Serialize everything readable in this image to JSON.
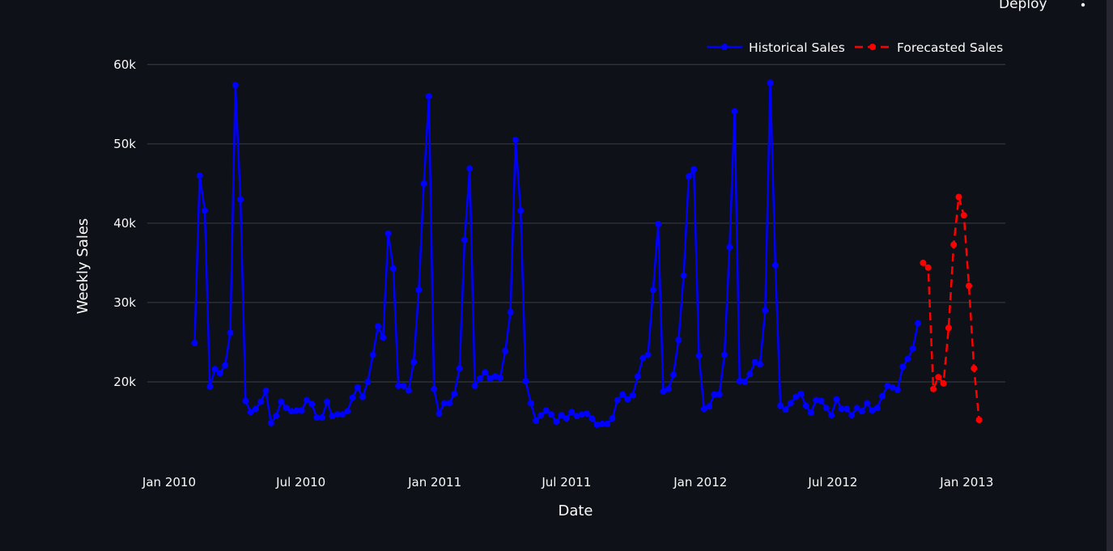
{
  "header": {
    "deploy_label": "Deploy"
  },
  "colors": {
    "background": "#0e1117",
    "grid": "#3b3f47",
    "historical": "#0000ff",
    "forecast": "#ff0000",
    "text": "#fafafa"
  },
  "chart_data": {
    "type": "line",
    "xlabel": "Date",
    "ylabel": "Weekly Sales",
    "x_ticks": [
      "Jan 2010",
      "Jul 2010",
      "Jan 2011",
      "Jul 2011",
      "Jan 2012",
      "Jul 2012",
      "Jan 2013"
    ],
    "x_tick_dates": [
      "2010-01-01",
      "2010-07-01",
      "2011-01-01",
      "2011-07-01",
      "2012-01-01",
      "2012-07-01",
      "2013-01-01"
    ],
    "y_ticks": [
      20000,
      30000,
      40000,
      50000,
      60000
    ],
    "y_tick_labels": [
      "20k",
      "30k",
      "40k",
      "50k",
      "60k"
    ],
    "ylim": [
      10000,
      61000
    ],
    "xlim": [
      "2009-12-02",
      "2013-02-23"
    ],
    "grid": true,
    "legend_position": "top-right",
    "series": [
      {
        "name": "Historical Sales",
        "style": "solid",
        "color": "#0000ff",
        "x": [
          "2010-02-05",
          "2010-02-12",
          "2010-02-19",
          "2010-02-26",
          "2010-03-05",
          "2010-03-12",
          "2010-03-19",
          "2010-03-26",
          "2010-04-02",
          "2010-04-09",
          "2010-04-16",
          "2010-04-23",
          "2010-04-30",
          "2010-05-07",
          "2010-05-14",
          "2010-05-21",
          "2010-05-28",
          "2010-06-04",
          "2010-06-11",
          "2010-06-18",
          "2010-06-25",
          "2010-07-02",
          "2010-07-09",
          "2010-07-16",
          "2010-07-23",
          "2010-07-30",
          "2010-08-06",
          "2010-08-13",
          "2010-08-20",
          "2010-08-27",
          "2010-09-03",
          "2010-09-10",
          "2010-09-17",
          "2010-09-24",
          "2010-10-01",
          "2010-10-08",
          "2010-10-15",
          "2010-10-22",
          "2010-10-29",
          "2010-11-05",
          "2010-11-12",
          "2010-11-19",
          "2010-11-26",
          "2010-12-03",
          "2010-12-10",
          "2010-12-17",
          "2010-12-24",
          "2010-12-31",
          "2011-01-07",
          "2011-01-14",
          "2011-01-21",
          "2011-01-28",
          "2011-02-04",
          "2011-02-11",
          "2011-02-18",
          "2011-02-25",
          "2011-03-04",
          "2011-03-11",
          "2011-03-18",
          "2011-03-25",
          "2011-04-01",
          "2011-04-08",
          "2011-04-15",
          "2011-04-22",
          "2011-04-29",
          "2011-05-06",
          "2011-05-13",
          "2011-05-20",
          "2011-05-27",
          "2011-06-03",
          "2011-06-10",
          "2011-06-17",
          "2011-06-24",
          "2011-07-01",
          "2011-07-08",
          "2011-07-15",
          "2011-07-22",
          "2011-07-29",
          "2011-08-05",
          "2011-08-12",
          "2011-08-19",
          "2011-08-26",
          "2011-09-02",
          "2011-09-09",
          "2011-09-16",
          "2011-09-23",
          "2011-09-30",
          "2011-10-07",
          "2011-10-14",
          "2011-10-21",
          "2011-10-28",
          "2011-11-04",
          "2011-11-11",
          "2011-11-18",
          "2011-11-25",
          "2011-12-02",
          "2011-12-09",
          "2011-12-16",
          "2011-12-23",
          "2011-12-30",
          "2012-01-06",
          "2012-01-13",
          "2012-01-20",
          "2012-01-27",
          "2012-02-03",
          "2012-02-10",
          "2012-02-17",
          "2012-02-24",
          "2012-03-02",
          "2012-03-09",
          "2012-03-16",
          "2012-03-23",
          "2012-03-30",
          "2012-04-06",
          "2012-04-13",
          "2012-04-20",
          "2012-04-27",
          "2012-05-04",
          "2012-05-11",
          "2012-05-18",
          "2012-05-25",
          "2012-06-01",
          "2012-06-08",
          "2012-06-15",
          "2012-06-22",
          "2012-06-29",
          "2012-07-06",
          "2012-07-13",
          "2012-07-20",
          "2012-07-27",
          "2012-08-03",
          "2012-08-10",
          "2012-08-17",
          "2012-08-24",
          "2012-08-31",
          "2012-09-07",
          "2012-09-14",
          "2012-09-21",
          "2012-09-28",
          "2012-10-05",
          "2012-10-12",
          "2012-10-19",
          "2012-10-26"
        ],
        "values": [
          24900,
          46000,
          41600,
          19400,
          21600,
          21100,
          22100,
          26200,
          57400,
          43000,
          17600,
          16200,
          16600,
          17500,
          18900,
          14800,
          15700,
          17500,
          16700,
          16300,
          16400,
          16400,
          17700,
          17200,
          15500,
          15500,
          17500,
          15700,
          15900,
          15900,
          16300,
          18000,
          19300,
          18100,
          20000,
          23400,
          27000,
          25600,
          38700,
          34300,
          19500,
          19500,
          18900,
          22500,
          31600,
          45000,
          56000,
          19100,
          16000,
          17300,
          17300,
          18500,
          21700,
          37900,
          46900,
          19500,
          20400,
          21200,
          20400,
          20700,
          20500,
          23900,
          28800,
          50500,
          41600,
          20100,
          17300,
          15100,
          15800,
          16400,
          15900,
          15000,
          15800,
          15400,
          16200,
          15700,
          15900,
          16000,
          15400,
          14600,
          14700,
          14700,
          15400,
          17700,
          18400,
          17800,
          18300,
          20700,
          23000,
          23400,
          31600,
          39900,
          18800,
          19100,
          20900,
          25300,
          33400,
          45900,
          46800,
          23300,
          16600,
          16900,
          18400,
          18400,
          23400,
          37000,
          54100,
          20100,
          20000,
          21000,
          22500,
          22200,
          29000,
          57700,
          34700,
          17000,
          16500,
          17300,
          18100,
          18500,
          17000,
          16100,
          17700,
          17600,
          16700,
          15800,
          17800,
          16600,
          16600,
          15800,
          16700,
          16300,
          17300,
          16400,
          16700,
          18200,
          19500,
          19300,
          19000,
          21900,
          22900,
          24200,
          27400
        ]
      },
      {
        "name": "Forecasted Sales",
        "style": "dashed",
        "color": "#ff0000",
        "x": [
          "2012-11-02",
          "2012-11-09",
          "2012-11-16",
          "2012-11-23",
          "2012-11-30",
          "2012-12-07",
          "2012-12-14",
          "2012-12-21",
          "2012-12-28",
          "2013-01-04",
          "2013-01-11",
          "2013-01-18"
        ],
        "values": [
          35000,
          34400,
          19100,
          20600,
          19800,
          26800,
          37300,
          43300,
          41000,
          32100,
          21700,
          15200
        ]
      }
    ]
  }
}
